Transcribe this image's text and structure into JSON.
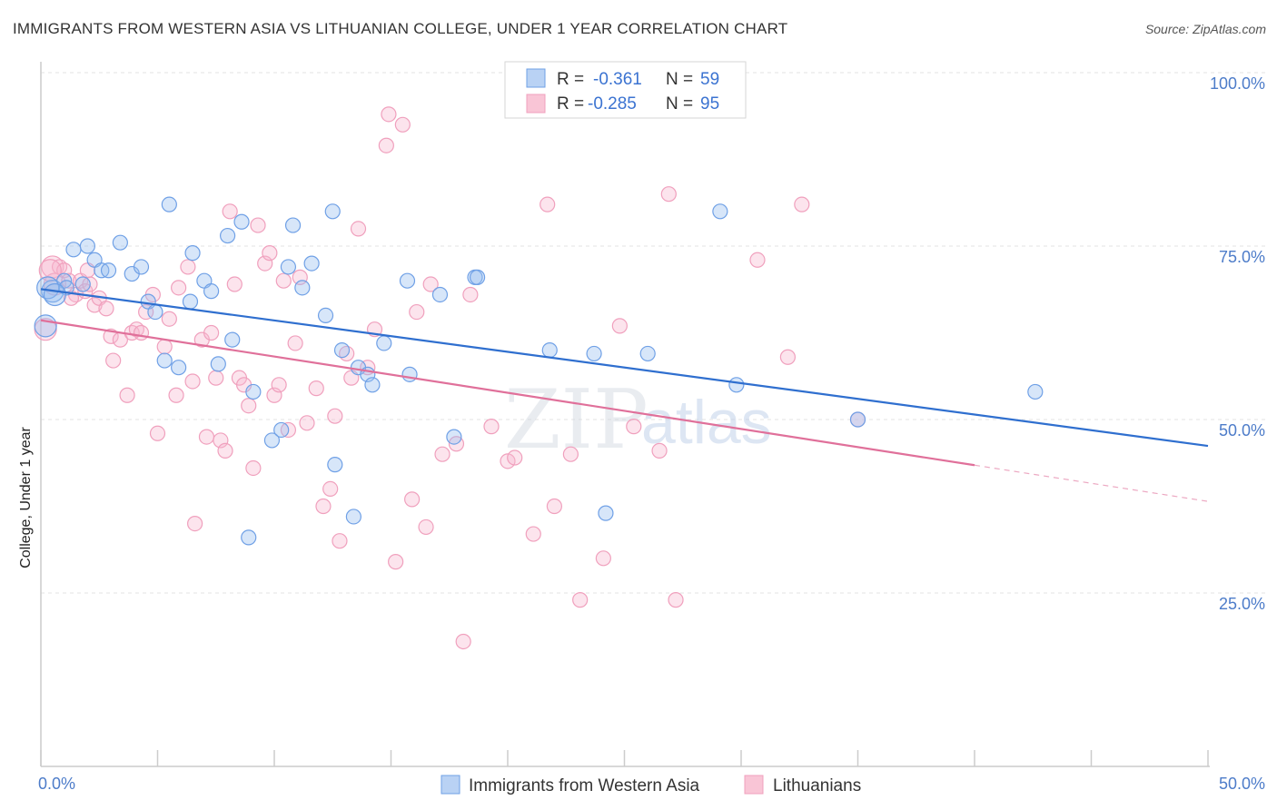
{
  "title": "IMMIGRANTS FROM WESTERN ASIA VS LITHUANIAN COLLEGE, UNDER 1 YEAR CORRELATION CHART",
  "source": "Source: ZipAtlas.com",
  "watermark": {
    "zip": "ZIP",
    "atlas": "atlas"
  },
  "colors": {
    "blue": "#6fa0e6",
    "blue_line": "#2f6fcf",
    "pink": "#f0a0bd",
    "pink_line": "#e0709a",
    "tick_text": "#4d7cc9"
  },
  "legend": {
    "rows": [
      {
        "r_label": "R =",
        "r_value": "-0.361",
        "n_label": "N =",
        "n_value": "59"
      },
      {
        "r_label": "R =",
        "r_value": "-0.285",
        "n_label": "N =",
        "n_value": "95"
      }
    ]
  },
  "chart_data": {
    "type": "scatter",
    "xlabel": "",
    "ylabel": "College, Under 1 year",
    "xlim": [
      0,
      50
    ],
    "ylim": [
      0,
      100
    ],
    "x_tick_labels": [
      "0.0%",
      "50.0%"
    ],
    "y_ticks": [
      25,
      50,
      75,
      100
    ],
    "y_tick_labels": [
      "25.0%",
      "50.0%",
      "75.0%",
      "100.0%"
    ],
    "grid": true,
    "legend_position": "top-center",
    "series": [
      {
        "name": "Immigrants from Western Asia",
        "trend": {
          "x": [
            0,
            50
          ],
          "y": [
            68.8,
            46.2
          ],
          "dashed_from": null
        },
        "points": [
          [
            0.5,
            68.5
          ],
          [
            1.0,
            70.0
          ],
          [
            1.1,
            69.0
          ],
          [
            1.4,
            74.5
          ],
          [
            2.0,
            75.0
          ],
          [
            2.3,
            73.0
          ],
          [
            2.6,
            71.5
          ],
          [
            2.9,
            71.5
          ],
          [
            3.4,
            75.5
          ],
          [
            3.9,
            71.0
          ],
          [
            4.3,
            72.0
          ],
          [
            4.6,
            67.0
          ],
          [
            4.9,
            65.5
          ],
          [
            5.3,
            58.5
          ],
          [
            5.5,
            81.0
          ],
          [
            5.9,
            57.5
          ],
          [
            6.4,
            67.0
          ],
          [
            6.5,
            74.0
          ],
          [
            7.0,
            70.0
          ],
          [
            7.3,
            68.5
          ],
          [
            7.6,
            58.0
          ],
          [
            8.0,
            76.5
          ],
          [
            8.2,
            61.5
          ],
          [
            8.6,
            78.5
          ],
          [
            8.9,
            33.0
          ],
          [
            9.1,
            54.0
          ],
          [
            9.9,
            47.0
          ],
          [
            10.3,
            48.5
          ],
          [
            10.6,
            72.0
          ],
          [
            10.8,
            78.0
          ],
          [
            11.2,
            69.0
          ],
          [
            11.6,
            72.5
          ],
          [
            12.2,
            65.0
          ],
          [
            12.5,
            80.0
          ],
          [
            12.6,
            43.5
          ],
          [
            12.9,
            60.0
          ],
          [
            13.4,
            36.0
          ],
          [
            13.6,
            57.5
          ],
          [
            14.0,
            56.5
          ],
          [
            14.2,
            55.0
          ],
          [
            14.7,
            61.0
          ],
          [
            15.8,
            56.5
          ],
          [
            15.7,
            70.0
          ],
          [
            17.1,
            68.0
          ],
          [
            17.7,
            47.5
          ],
          [
            18.6,
            70.5
          ],
          [
            18.7,
            70.5
          ],
          [
            21.8,
            60.0
          ],
          [
            23.7,
            59.5
          ],
          [
            24.2,
            36.5
          ],
          [
            26.0,
            59.5
          ],
          [
            29.1,
            80.0
          ],
          [
            29.8,
            55.0
          ],
          [
            35.0,
            50.0
          ],
          [
            42.6,
            54.0
          ],
          [
            0.3,
            69.0
          ],
          [
            0.2,
            63.5
          ],
          [
            0.6,
            68.0
          ],
          [
            1.8,
            69.5
          ]
        ]
      },
      {
        "name": "Lithuanians",
        "trend": {
          "x": [
            0,
            50
          ],
          "y": [
            64.3,
            38.2
          ],
          "dashed_from": 40
        },
        "points": [
          [
            0.2,
            63.0
          ],
          [
            0.5,
            72.0
          ],
          [
            0.6,
            69.5
          ],
          [
            0.8,
            72.0
          ],
          [
            1.0,
            71.5
          ],
          [
            1.2,
            70.0
          ],
          [
            1.5,
            68.0
          ],
          [
            1.7,
            70.0
          ],
          [
            1.9,
            68.5
          ],
          [
            2.1,
            69.5
          ],
          [
            2.3,
            66.5
          ],
          [
            2.5,
            67.5
          ],
          [
            2.8,
            66.0
          ],
          [
            3.0,
            62.0
          ],
          [
            3.1,
            58.5
          ],
          [
            3.4,
            61.5
          ],
          [
            3.7,
            53.5
          ],
          [
            3.9,
            62.5
          ],
          [
            4.1,
            63.0
          ],
          [
            4.3,
            62.5
          ],
          [
            4.5,
            65.5
          ],
          [
            4.8,
            68.0
          ],
          [
            5.0,
            48.0
          ],
          [
            5.3,
            60.5
          ],
          [
            5.5,
            64.5
          ],
          [
            5.8,
            53.5
          ],
          [
            5.9,
            69.0
          ],
          [
            6.3,
            72.0
          ],
          [
            6.5,
            55.5
          ],
          [
            6.6,
            35.0
          ],
          [
            6.9,
            61.5
          ],
          [
            7.1,
            47.5
          ],
          [
            7.3,
            62.5
          ],
          [
            7.5,
            56.0
          ],
          [
            7.7,
            47.0
          ],
          [
            7.9,
            45.5
          ],
          [
            8.1,
            80.0
          ],
          [
            8.3,
            69.5
          ],
          [
            8.5,
            56.0
          ],
          [
            8.7,
            55.0
          ],
          [
            8.9,
            52.0
          ],
          [
            9.1,
            43.0
          ],
          [
            9.3,
            78.0
          ],
          [
            9.6,
            72.5
          ],
          [
            9.8,
            74.0
          ],
          [
            10.0,
            53.5
          ],
          [
            10.2,
            55.0
          ],
          [
            10.4,
            70.0
          ],
          [
            10.6,
            48.5
          ],
          [
            10.9,
            61.0
          ],
          [
            11.1,
            70.5
          ],
          [
            11.4,
            49.5
          ],
          [
            11.8,
            54.5
          ],
          [
            12.1,
            37.5
          ],
          [
            12.4,
            40.0
          ],
          [
            12.6,
            50.5
          ],
          [
            12.8,
            32.5
          ],
          [
            13.1,
            59.5
          ],
          [
            13.3,
            56.0
          ],
          [
            13.6,
            77.5
          ],
          [
            14.0,
            57.5
          ],
          [
            14.3,
            63.0
          ],
          [
            14.8,
            89.5
          ],
          [
            14.9,
            94.0
          ],
          [
            15.2,
            29.5
          ],
          [
            15.5,
            92.5
          ],
          [
            15.9,
            38.5
          ],
          [
            16.1,
            65.5
          ],
          [
            16.5,
            34.5
          ],
          [
            16.7,
            69.5
          ],
          [
            17.2,
            45.0
          ],
          [
            17.8,
            46.5
          ],
          [
            18.1,
            18.0
          ],
          [
            18.4,
            68.0
          ],
          [
            19.3,
            49.0
          ],
          [
            20.0,
            44.0
          ],
          [
            20.3,
            44.5
          ],
          [
            21.1,
            33.5
          ],
          [
            21.7,
            81.0
          ],
          [
            22.0,
            37.5
          ],
          [
            22.7,
            45.0
          ],
          [
            23.1,
            24.0
          ],
          [
            24.1,
            30.0
          ],
          [
            24.8,
            63.5
          ],
          [
            25.4,
            49.0
          ],
          [
            26.5,
            45.5
          ],
          [
            26.9,
            82.5
          ],
          [
            27.2,
            24.0
          ],
          [
            30.7,
            73.0
          ],
          [
            32.0,
            59.0
          ],
          [
            32.6,
            81.0
          ],
          [
            35.0,
            50.0
          ],
          [
            0.4,
            71.5
          ],
          [
            1.3,
            67.5
          ],
          [
            2.0,
            71.5
          ]
        ]
      }
    ]
  },
  "bottom_legend": [
    "Immigrants from Western Asia",
    "Lithuanians"
  ]
}
